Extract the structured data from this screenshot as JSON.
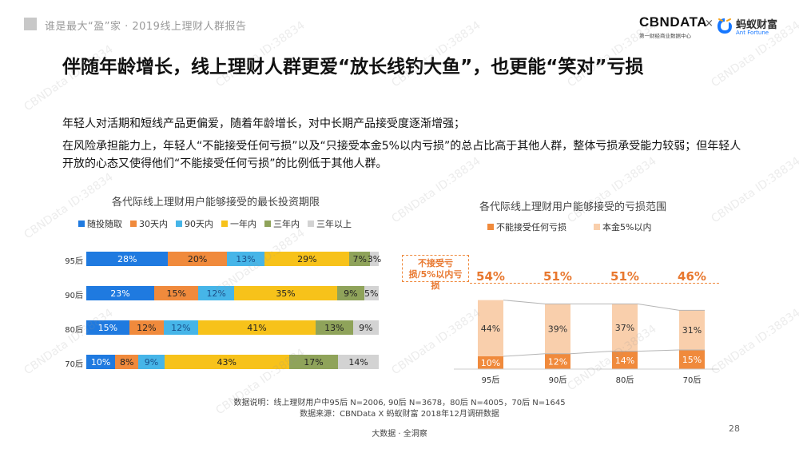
{
  "header": {
    "report_title": "谁是最大“盈”家 · 2019线上理财人群报告",
    "logo_cbn_main": "CBNDATA",
    "logo_cbn_sub": "第一财经商业数据中心",
    "logo_separator": "×",
    "logo_ant_cn": "蚂蚁财富",
    "logo_ant_en": "Ant Fortune"
  },
  "page_title": "伴随年龄增长，线上理财人群更爱“放长线钓大鱼”，也更能“笑对”亏损",
  "descriptions": [
    "年轻人对活期和短线产品更偏爱，随着年龄增长，对中长期产品接受度逐渐增强；",
    "在风险承担能力上，年轻人“不能接受任何亏损”以及“只接受本金5%以内亏损”的总占比高于其他人群，整体亏损承受能力较弱；但年轻人开放的心态又使得他们“不能接受任何亏损”的比例低于其他人群。"
  ],
  "chart_data": [
    {
      "type": "bar",
      "stacked": true,
      "orientation": "horizontal",
      "title": "各代际线上理财用户能够接受的最长投资期限",
      "categories": [
        "95后",
        "90后",
        "80后",
        "70后"
      ],
      "series": [
        {
          "name": "随投随取",
          "color": "#1f7ae0",
          "values": [
            28,
            23,
            15,
            10
          ],
          "labels": [
            "28%",
            "23%",
            "15%",
            "10%"
          ]
        },
        {
          "name": "30天内",
          "color": "#f08a3c",
          "values": [
            20,
            15,
            12,
            8
          ],
          "labels": [
            "20%",
            "15%",
            "12%",
            "8%"
          ]
        },
        {
          "name": "90天内",
          "color": "#46b5e8",
          "values": [
            13,
            12,
            12,
            9
          ],
          "labels": [
            "13%",
            "12%",
            "12%",
            "9%"
          ]
        },
        {
          "name": "一年内",
          "color": "#f7c21a",
          "values": [
            29,
            35,
            41,
            43
          ],
          "labels": [
            "29%",
            "35%",
            "41%",
            "43%"
          ]
        },
        {
          "name": "三年内",
          "color": "#8fa35a",
          "values": [
            7,
            9,
            13,
            17
          ],
          "labels": [
            "7%",
            "9%",
            "13%",
            "17%"
          ]
        },
        {
          "name": "三年以上",
          "color": "#d3d3d3",
          "values": [
            3,
            5,
            9,
            14
          ],
          "labels": [
            "3%",
            "5%",
            "9%",
            "14%"
          ]
        }
      ],
      "legend": "top"
    },
    {
      "type": "bar",
      "stacked": true,
      "orientation": "vertical",
      "title": "各代际线上理财用户能够接受的亏损范围",
      "categories": [
        "95后",
        "90后",
        "80后",
        "70后"
      ],
      "series": [
        {
          "name": "不能接受任何亏损",
          "color": "#f08a3c",
          "values": [
            10,
            12,
            14,
            15
          ],
          "labels": [
            "10%",
            "12%",
            "14%",
            "15%"
          ]
        },
        {
          "name": "本金5%以内",
          "color": "#f9cfac",
          "values": [
            44,
            39,
            37,
            31
          ],
          "labels": [
            "44%",
            "39%",
            "37%",
            "31%"
          ]
        }
      ],
      "totals": [
        "54%",
        "51%",
        "51%",
        "46%"
      ],
      "totals_label": "不接受亏损/5%以内亏损",
      "legend": "top"
    }
  ],
  "footnote": {
    "line1": "数据说明：线上理财用户中95后 N=2006, 90后 N=3678，80后 N=4005，70后 N=1645",
    "line2": "数据来源：CBNData X 蚂蚁财富 2018年12月调研数据"
  },
  "footer_tag": "大数据 · 全洞察",
  "page_number": "28",
  "watermark_text": "CBNData ID:38834"
}
